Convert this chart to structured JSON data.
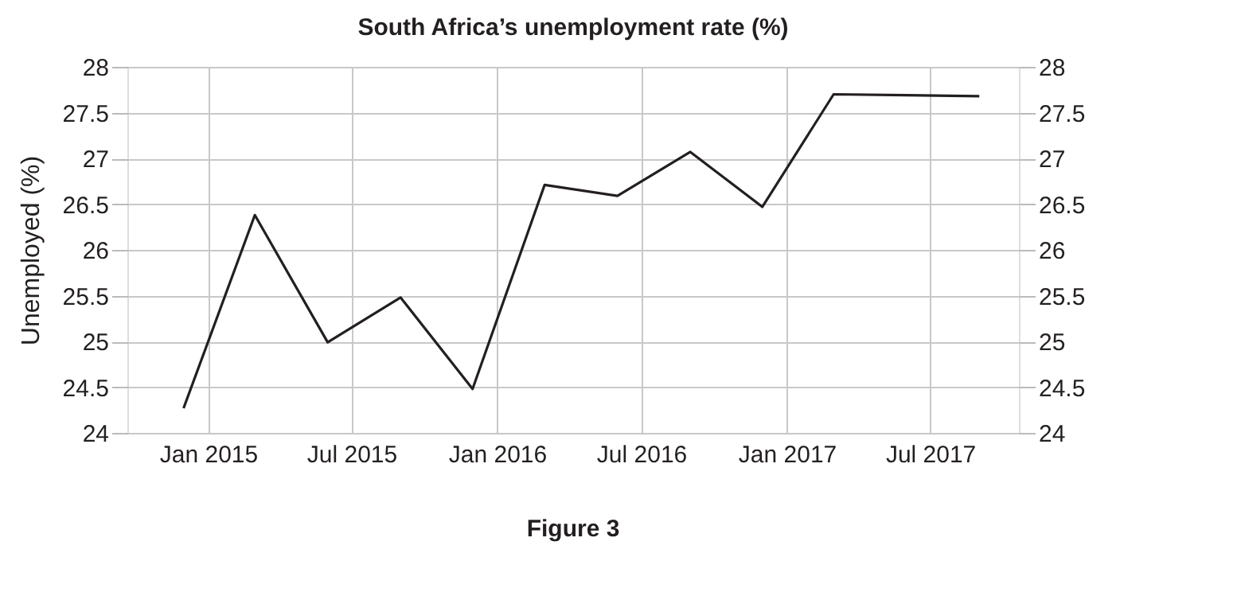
{
  "chart_data": {
    "type": "line",
    "title": "South Africa’s unemployment rate (%)",
    "ylabel": "Unemployed (%)",
    "x": [
      "2014-12-01",
      "2015-03-01",
      "2015-06-01",
      "2015-09-01",
      "2015-12-01",
      "2016-03-01",
      "2016-06-01",
      "2016-09-01",
      "2016-12-01",
      "2017-03-01",
      "2017-06-01",
      "2017-09-01"
    ],
    "series": [
      {
        "color": "#231f20",
        "values": [
          24.27,
          26.38,
          24.99,
          25.48,
          24.48,
          26.71,
          26.59,
          27.07,
          26.47,
          27.7,
          27.69,
          27.68
        ]
      }
    ],
    "xlim": [
      "2014-09-21",
      "2017-10-21"
    ],
    "xticks": [
      {
        "value": "2015-01-01",
        "label": "Jan 2015"
      },
      {
        "value": "2015-07-01",
        "label": "Jul 2015"
      },
      {
        "value": "2016-01-01",
        "label": "Jan 2016"
      },
      {
        "value": "2016-07-01",
        "label": "Jul 2016"
      },
      {
        "value": "2017-01-01",
        "label": "Jan 2017"
      },
      {
        "value": "2017-07-01",
        "label": "Jul 2017"
      }
    ],
    "ylim": [
      24,
      28
    ],
    "yticks": [
      24,
      24.5,
      25,
      25.5,
      26,
      26.5,
      27,
      27.5,
      28
    ],
    "y2lim": [
      24,
      28
    ],
    "y2ticks": [
      24,
      24.5,
      25,
      25.5,
      26,
      26.5,
      27,
      27.5,
      28
    ],
    "grid": true,
    "marker": "none",
    "line_style": "solid",
    "annotations": [
      "Figure 3"
    ]
  }
}
